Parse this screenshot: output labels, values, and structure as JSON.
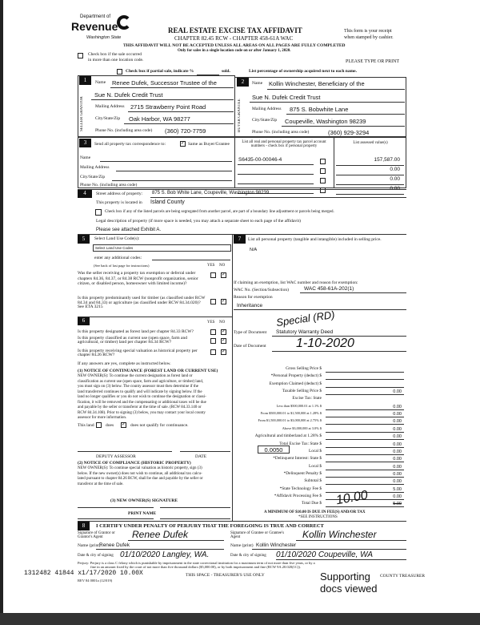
{
  "header": {
    "dept": "Department of",
    "revenue": "Revenue",
    "state": "Washington State",
    "title": "REAL ESTATE EXCISE TAX AFFIDAVIT",
    "chapter": "CHAPTER 82.45 RCW - CHAPTER 458-61A WAC",
    "warning": "THIS AFFIDAVIT WILL NOT BE ACCEPTED UNLESS ALL AREAS ON ALL PAGES ARE FULLY COMPLETED",
    "only": "Only for sales in a single location code on or after January 1, 2020.",
    "receipt1": "This form is your receipt",
    "receipt2": "when stamped by cashier.",
    "type_print": "PLEASE TYPE OR PRINT",
    "multi_loc1": "Check box if the sale occurred",
    "multi_loc2": "in more than one location code.",
    "partial": "Check box if partial sale, indicate %",
    "sold": "sold.",
    "list_pct": "List percentage of ownership acquired next to each name."
  },
  "seller": {
    "num": "1",
    "side": "SELLER GRANTOR",
    "name_label": "Name",
    "name1": "Renee Dufek, Successor Trustee of the",
    "name2": "Sue N. Dufek Credit Trust",
    "addr_label": "Mailing Address",
    "addr": "2715 Strawberry Point Road",
    "city_label": "City/State/Zip",
    "city": "Oak Harbor, WA 98277",
    "phone_label": "Phone No. (including area code)",
    "phone": "(360) 720-7759"
  },
  "buyer": {
    "num": "2",
    "side": "BUYER GRANTEE",
    "name_label": "Name",
    "name1": "Kollin Winchester, Beneficiary of the",
    "name2": "Sue N. Dufek Credit Trust",
    "addr_label": "Mailing Address",
    "addr": "875 S. Bobwhite Lane",
    "city_label": "City/State/Zip",
    "city": "Coupeville, Washington 98239",
    "phone_label": "Phone No. (including area code)",
    "phone": "(360) 929-3294"
  },
  "sec3": {
    "num": "3",
    "send": "Send all property tax correspondence to:",
    "same": "Same as Buyer/Grantee",
    "same_checked": true,
    "name": "Name",
    "mail": "Mailing Address",
    "city": "City/State/Zip",
    "phone": "Phone No. (including area code)",
    "parcel_header": "List all real and personal property tax parcel account numbers - check box if personal property",
    "assessed_header": "List assessed value(s)",
    "parcels": [
      {
        "acct": "S6435-00-00046-4",
        "value": "157,587.00"
      },
      {
        "acct": "",
        "value": "0.00"
      },
      {
        "acct": "",
        "value": "0.00"
      },
      {
        "acct": "",
        "value": "0.00"
      }
    ]
  },
  "sec4": {
    "num": "4",
    "street_label": "Street address of property:",
    "street": "875 S. Bob White Lane, Coupeville, Washington 98239",
    "located_label": "This property is located in",
    "county": "Island County",
    "segregate": "Check box if any of the listed parcels are being segregated from another parcel, are part of a boundary line adjustment or parcels being merged.",
    "legal": "Legal description of property (if more space is needed, you may attach a separate sheet to each page of the affidavit)",
    "legal_value": "Please see attached Exhibit A."
  },
  "sec5": {
    "num": "5",
    "select": "Select Land Use Code(s):",
    "select_value": "Select Land Use Codes",
    "additional": "enter any additional codes:",
    "see_back": "(See back of last page for instructions)",
    "yes": "YES",
    "no": "NO",
    "q1": "Was the seller receiving a property tax exemption or deferral under chapters 84.36, 84.37, or 84.38 RCW (nonprofit organization, senior citizen, or disabled person, homeowner with limited income)?",
    "q2": "Is this property predominantly used for timber (as classified under RCW 84.34 and 84.33) or agriculture (as classified under RCW 84.34.020)? See ETA 3215"
  },
  "sec6": {
    "num": "6",
    "q1": "Is this property designated as forest land per chapter 84.33 RCW?",
    "q2": "Is this property classified as current use (open space, farm and agricultural, or timber) land per chapter 84.34 RCW?",
    "q3": "Is this property receiving special valuation as historical property per chapter 84.26 RCW?",
    "if_yes": "If any answers are yes, complete as instructed below.",
    "n1_title": "(1) NOTICE OF CONTINUANCE (FOREST LAND OR CURRENT USE)",
    "n1_text": [
      "NEW OWNER(S): To continue the current designation as forest land or",
      "classification as current use (open space, farm and agriculture, or timber) land,",
      "you must sign on (3) below. The county assessor must then determine if the",
      "land transferred continues to qualify and will indicate by signing below. If the",
      "land no longer qualifies or you do not wish to continue the designation or classi-",
      "fication, it will be removed and the compensating or additional taxes will be due",
      "and payable by the seller or transferor at the time of sale. (RCW 84.33.140 or",
      "RCW 84.34.108). Prior to signing (3) below, you may contact your local county",
      "assessor for more information."
    ],
    "this_land": "This land",
    "does": "does",
    "does_not": "does not qualify for continuance.",
    "deputy": "DEPUTY ASSESSOR",
    "date": "DATE",
    "n2_title": "(2) NOTICE OF COMPLIANCE (HISTORIC PROPERTY)",
    "n2_text": [
      "NEW OWNER(S): To continue special valuation as historic property, sign (3)",
      "below. If the new owner(s) does not wish to continue, all additional tax calcu-",
      "lated pursuant to chapter 84.26 RCW, shall be due and payable by the seller or",
      "transferor at the time of sale."
    ],
    "sig3": "(3) NEW OWNER(S) SIGNATURE",
    "print_name": "PRINT NAME"
  },
  "sec7": {
    "num": "7",
    "list": "List all personal property (tangible and intangible) included in selling price.",
    "value": "N/A",
    "claim": "If claiming an exemption, list WAC number and reason for exemption:",
    "wac_label": "WAC No. (Section/Subsection)",
    "wac": "WAC 458-61A-202(1)",
    "reason_label": "Reason for exemption",
    "reason": "Inheritance",
    "type_label": "Type of Document",
    "type_value": "Statutory Warranty Deed",
    "type_handwritten": "Special (RD)",
    "date_label": "Date of Document",
    "date_value": "1-10-2020"
  },
  "tax": {
    "rows": [
      {
        "label": "Gross Selling Price $",
        "value": ""
      },
      {
        "label": "*Personal Property (deduct) $",
        "value": ""
      },
      {
        "label": "Exemption Claimed (deduct) $",
        "value": ""
      },
      {
        "label": "Taxable Selling Price $",
        "value": "0.00"
      },
      {
        "label": "Excise Tax: State",
        "value": null
      },
      {
        "label": "Less than $500,000.01 at 1.1% $",
        "value": "0.00"
      },
      {
        "label": "From $500,000.01 to $1,500,000 at 1.28% $",
        "value": "0.00"
      },
      {
        "label": "From $1,500,000.01 to $3,000,000 at 2.75% $",
        "value": "0.00"
      },
      {
        "label": "Above $3,000,000 at 3.0% $",
        "value": "0.00"
      },
      {
        "label": "Agricultural and timberland at 1.28% $",
        "value": "0.00"
      },
      {
        "label": "Total Excise Tax: State $",
        "value": "0.00"
      },
      {
        "label": "Local $",
        "value": "0.00"
      },
      {
        "label": "*Delinquent Interest: State $",
        "value": "0.00"
      },
      {
        "label": "Local $",
        "value": "0.00"
      },
      {
        "label": "*Delinquent Penalty $",
        "value": "0.00"
      },
      {
        "label": "Subtotal $",
        "value": "0.00"
      },
      {
        "label": "*State Technology Fee $",
        "value": "5.00"
      },
      {
        "label": "*Affidavit Processing Fee $",
        "value": "0.00"
      },
      {
        "label": "Total Due $",
        "value": "5.00"
      }
    ],
    "local_rate": "0.0050",
    "total_handwritten": "10.00",
    "minimum": "A MINIMUM OF $10.00 IS DUE IN FEE(S) AND/OR TAX",
    "see_instr": "*SEE INSTRUCTIONS"
  },
  "sec8": {
    "num": "8",
    "certify": "I CERTIFY UNDER PENALTY OF PERJURY THAT THE FOREGOING IS TRUE AND CORRECT",
    "sig_grantor": "Signature of Grantor or Grantor's Agent",
    "sig_grantee": "Signature of Grantee or Grantee's Agent",
    "grantor_sig": "Renee Dufek",
    "grantee_sig": "Kollin Winchester",
    "name_label": "Name (print)",
    "grantor_name": "Renee Dufek",
    "grantee_name": "Kollin Winchester",
    "date_label": "Date & city of signing",
    "grantor_date": "01/10/2020 Langley, WA.",
    "grantee_date": "01/10/2020 Coupeville, WA",
    "perjury": "Perjury: Perjury is a class C felony which is punishable by imprisonment in the state correctional institution for a maximum term of not more than five years, or by a",
    "perjury2": "fine in an amount fixed by the court of not more than five thousand dollars ($5,000.00), or by both imprisonment and fine (RCW 9A.20.020(1C))."
  },
  "footer": {
    "stamp": "1312482 41844 x1/17/2020 10.00X",
    "rev": "REV 84 0001a (12/019)",
    "treasurer_use": "THIS SPACE - TREASURER'S USE ONLY",
    "county_treasurer": "COUNTY TREASURER",
    "supporting": "Supporting",
    "docs_viewed": "docs viewed"
  }
}
